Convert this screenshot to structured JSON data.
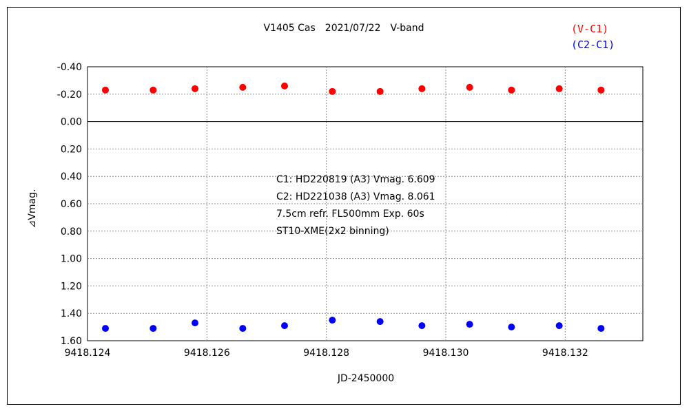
{
  "chart_data": {
    "type": "scatter",
    "title": "V1405 Cas　2021/07/22　V-band",
    "xlabel": "JD-2450000",
    "ylabel": "⊿Vmag.",
    "xlim": [
      9418.124,
      9418.1333
    ],
    "ylim": [
      -0.4,
      1.6
    ],
    "y_inverted": true,
    "x_ticks": [
      "9418.124",
      "9418.126",
      "9418.128",
      "9418.130",
      "9418.132"
    ],
    "x_tick_values": [
      9418.124,
      9418.126,
      9418.128,
      9418.13,
      9418.132
    ],
    "y_ticks": [
      "-0.40",
      "-0.20",
      "0.00",
      "0.20",
      "0.40",
      "0.60",
      "0.80",
      "1.00",
      "1.20",
      "1.40",
      "1.60"
    ],
    "y_tick_values": [
      -0.4,
      -0.2,
      0.0,
      0.2,
      0.4,
      0.6,
      0.8,
      1.0,
      1.2,
      1.4,
      1.6
    ],
    "grid": true,
    "legend_position": "top-right",
    "series": [
      {
        "name": "(V-C1)",
        "color": "#ff0000",
        "x": [
          9418.1243,
          9418.1251,
          9418.1258,
          9418.1266,
          9418.1273,
          9418.1281,
          9418.1289,
          9418.1296,
          9418.1304,
          9418.1311,
          9418.1319,
          9418.1326
        ],
        "y": [
          -0.23,
          -0.23,
          -0.24,
          -0.25,
          -0.26,
          -0.22,
          -0.22,
          -0.24,
          -0.25,
          -0.23,
          -0.24,
          -0.23
        ]
      },
      {
        "name": "(C2-C1)",
        "color": "#0000ff",
        "x": [
          9418.1243,
          9418.1251,
          9418.1258,
          9418.1266,
          9418.1273,
          9418.1281,
          9418.1289,
          9418.1296,
          9418.1304,
          9418.1311,
          9418.1319,
          9418.1326
        ],
        "y": [
          1.51,
          1.51,
          1.47,
          1.51,
          1.49,
          1.45,
          1.46,
          1.49,
          1.48,
          1.5,
          1.49,
          1.51
        ]
      }
    ],
    "annotations": [
      "C1: HD220819 (A3) Vmag. 6.609",
      "C2: HD221038 (A3) Vmag. 8.061",
      "7.5cm refr. FL500mm Exp. 60s",
      "ST10-XME(2x2 binning)"
    ]
  }
}
